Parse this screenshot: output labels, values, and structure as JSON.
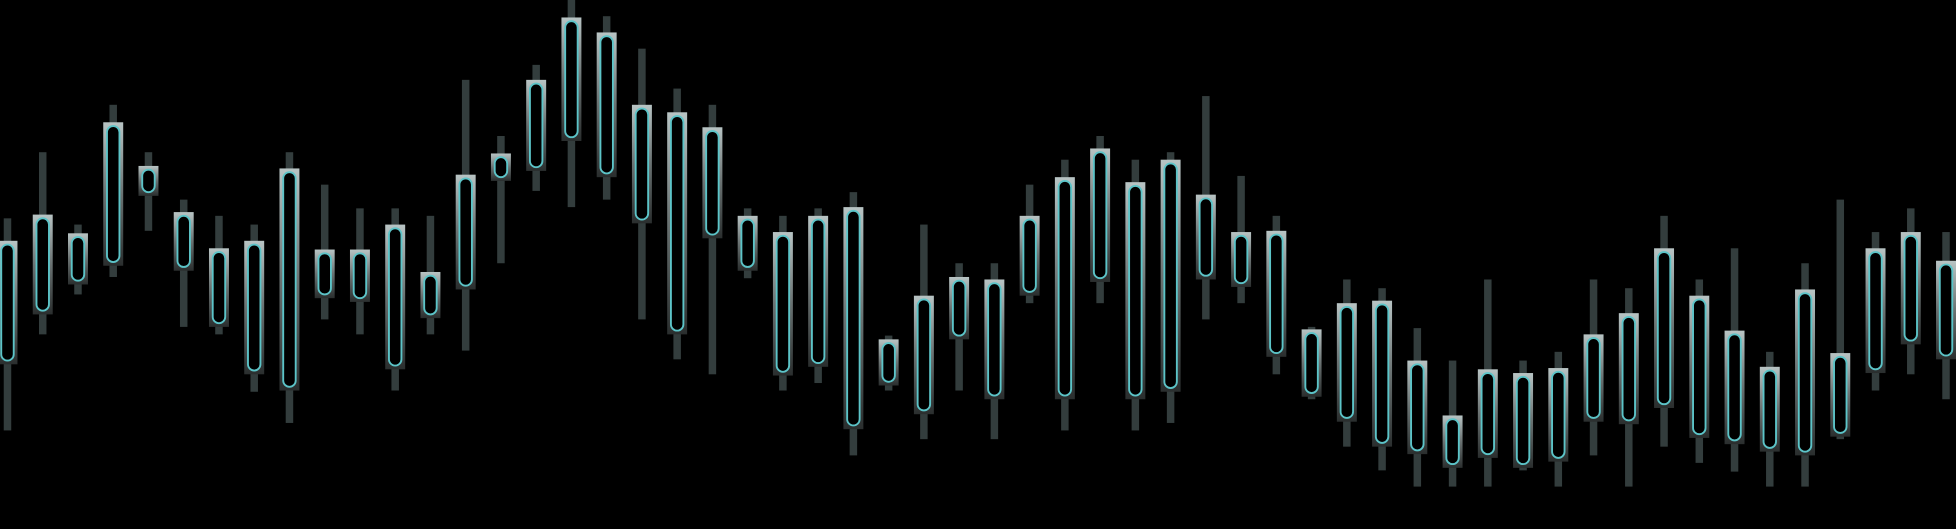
{
  "chart_data": {
    "type": "candlestick",
    "high": [
      249,
      302,
      244,
      340,
      302,
      264,
      251,
      244,
      302,
      276,
      257,
      257,
      251,
      360,
      315,
      372,
      424,
      411,
      385,
      353,
      340,
      257,
      251,
      257,
      270,
      155,
      244,
      213,
      213,
      276,
      296,
      315,
      296,
      302,
      347,
      283,
      251,
      162,
      200,
      193,
      161,
      135,
      200,
      135,
      142,
      200,
      193,
      251,
      200,
      225,
      142,
      213,
      264,
      238,
      257,
      238
    ],
    "low": [
      79,
      156,
      188,
      202,
      239,
      162,
      156,
      110,
      85,
      168,
      156,
      111,
      156,
      143,
      213,
      271,
      258,
      264,
      168,
      136,
      124,
      201,
      111,
      117,
      59,
      111,
      72,
      111,
      72,
      181,
      79,
      181,
      79,
      85,
      168,
      181,
      124,
      104,
      66,
      47,
      34,
      34,
      34,
      47,
      34,
      59,
      34,
      66,
      53,
      46,
      34,
      34,
      72,
      111,
      124,
      104
    ],
    "open": [
      132,
      172,
      196,
      211,
      267,
      207,
      162,
      124,
      111,
      185,
      182,
      128,
      169,
      192,
      279,
      287,
      311,
      282,
      245,
      156,
      233,
      207,
      123,
      130,
      80,
      115,
      92,
      152,
      104,
      187,
      104,
      198,
      104,
      110,
      200,
      194,
      138,
      106,
      86,
      66,
      60,
      49,
      57,
      49,
      54,
      86,
      84,
      97,
      73,
      68,
      62,
      59,
      74,
      125,
      148,
      136
    ],
    "close": [
      231,
      252,
      237,
      326,
      291,
      254,
      225,
      231,
      289,
      224,
      224,
      244,
      206,
      284,
      301,
      360,
      410,
      398,
      340,
      334,
      322,
      251,
      238,
      251,
      258,
      152,
      187,
      202,
      200,
      251,
      282,
      305,
      278,
      296,
      268,
      238,
      239,
      160,
      181,
      183,
      135,
      91,
      128,
      125,
      129,
      156,
      173,
      225,
      187,
      159,
      130,
      192,
      141,
      225,
      238,
      215
    ],
    "ylim": [
      0,
      424
    ],
    "color": "#5cc4c8",
    "wick_color": "#3c4848"
  }
}
